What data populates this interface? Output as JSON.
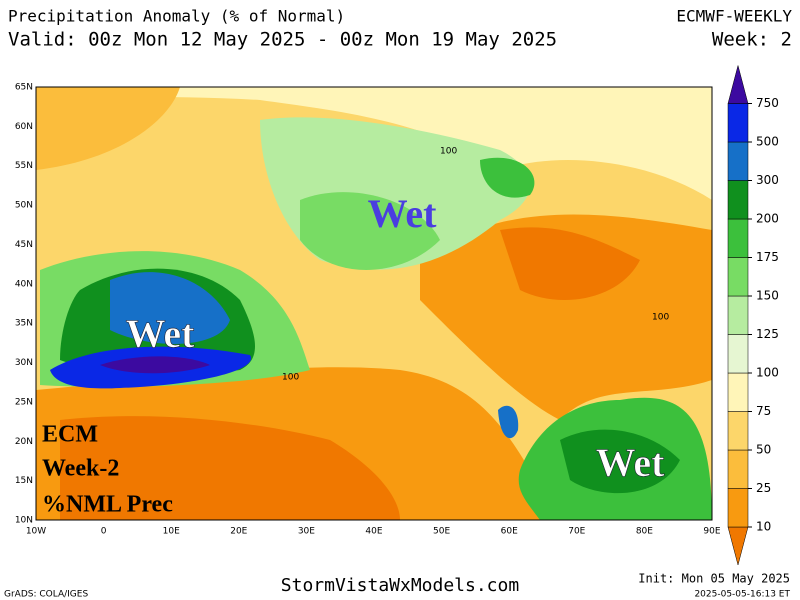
{
  "header": {
    "title": "Precipitation Anomaly (% of Normal)",
    "model": "ECMWF-WEEKLY",
    "valid": "Valid: 00z Mon 12 May 2025 - 00z Mon 19 May 2025",
    "week": "Week: 2"
  },
  "map": {
    "lat_labels": [
      "65N",
      "60N",
      "55N",
      "50N",
      "45N",
      "40N",
      "35N",
      "30N",
      "25N",
      "20N",
      "15N",
      "10N"
    ],
    "lon_labels": [
      "10W",
      "0",
      "10E",
      "20E",
      "30E",
      "40E",
      "50E",
      "60E",
      "70E",
      "80E",
      "90E"
    ],
    "annotations": [
      "Wet",
      "Wet",
      "Wet"
    ],
    "overlay": [
      "ECM",
      "Week-2",
      "%NML Prec"
    ],
    "contour_labels": [
      "100",
      "100",
      "100"
    ]
  },
  "colorbar": {
    "levels": [
      10,
      25,
      50,
      75,
      100,
      125,
      150,
      175,
      200,
      300,
      500,
      750
    ],
    "colors": [
      "#f07800",
      "#f89a10",
      "#fbbd3c",
      "#fcd66a",
      "#fff5b8",
      "#e6f6d2",
      "#b6eca0",
      "#78dc64",
      "#3cc03c",
      "#10901e",
      "#1670c8",
      "#0a28e6",
      "#3c0aa0"
    ]
  },
  "footer": {
    "source": "GrADS: COLA/IGES",
    "site": "StormVistaWxModels.com",
    "init": "Init: Mon 05 May 2025",
    "stamp": "2025-05-05-16:13 ET"
  }
}
